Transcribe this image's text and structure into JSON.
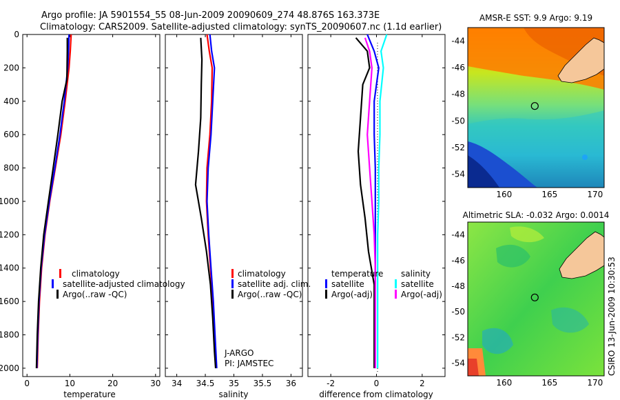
{
  "header": {
    "line1": "Argo profile: JA 5901554_55 08-Jun-2009 20090609_274 48.876S 163.373E",
    "line2": "Climatology: CARS2009. Satellite-adjusted climatology: synTS_20090607.nc (1.1d earlier)"
  },
  "chart_data": [
    {
      "id": "temperature",
      "type": "line",
      "xlabel": "temperature",
      "xlim": [
        -1,
        31
      ],
      "ylim": [
        0,
        2050
      ],
      "xticks": [
        "0",
        "10",
        "20",
        "30"
      ],
      "yticks": [
        "0",
        "200",
        "400",
        "600",
        "800",
        "1000",
        "1200",
        "1400",
        "1600",
        "1800",
        "2000"
      ],
      "legend": [
        "climatology",
        "satellite-adjusted climatology",
        "Argo(..raw -QC)"
      ],
      "series": [
        {
          "name": "climatology",
          "color": "#ff0000",
          "depth": [
            0,
            100,
            200,
            400,
            600,
            800,
            1000,
            1200,
            1400,
            1600,
            1800,
            2000
          ],
          "values": [
            10.3,
            10.1,
            9.8,
            8.9,
            7.9,
            6.6,
            5.3,
            4.2,
            3.4,
            2.9,
            2.6,
            2.4
          ]
        },
        {
          "name": "satellite-adjusted climatology",
          "color": "#0000ff",
          "depth": [
            0,
            100,
            200,
            400,
            600,
            800,
            1000,
            1200,
            1400,
            1600,
            1800,
            2000
          ],
          "values": [
            9.8,
            9.7,
            9.5,
            8.7,
            7.7,
            6.5,
            5.2,
            4.1,
            3.3,
            2.8,
            2.5,
            2.3
          ]
        },
        {
          "name": "Argo(..raw -QC)",
          "color": "#000000",
          "depth": [
            20,
            100,
            270,
            400,
            600,
            800,
            1000,
            1200,
            1400,
            1600,
            1800,
            2000
          ],
          "values": [
            9.4,
            9.4,
            9.3,
            8.2,
            7.2,
            6.1,
            5.0,
            3.9,
            3.2,
            2.7,
            2.4,
            2.2
          ]
        }
      ]
    },
    {
      "id": "salinity",
      "type": "line",
      "xlabel": "salinity",
      "xlim": [
        33.8,
        36.2
      ],
      "ylim": [
        0,
        2050
      ],
      "xticks": [
        "34",
        "34.5",
        "35",
        "35.5",
        "36"
      ],
      "legend": [
        "climatology",
        "satellite adj. clim.",
        "Argo(..raw -QC)"
      ],
      "annotation": [
        "J-ARGO",
        "PI: JAMSTEC"
      ],
      "series": [
        {
          "name": "climatology",
          "color": "#ff0000",
          "depth": [
            0,
            100,
            200,
            400,
            600,
            800,
            1000,
            1200,
            1400,
            1600,
            1800,
            2000
          ],
          "values": [
            34.53,
            34.57,
            34.62,
            34.61,
            34.58,
            34.53,
            34.52,
            34.55,
            34.59,
            34.63,
            34.66,
            34.69
          ]
        },
        {
          "name": "satellite adj. clim.",
          "color": "#0000ff",
          "depth": [
            0,
            100,
            200,
            400,
            600,
            800,
            1000,
            1200,
            1400,
            1600,
            1800,
            2000
          ],
          "values": [
            34.58,
            34.61,
            34.66,
            34.63,
            34.6,
            34.55,
            34.53,
            34.56,
            34.6,
            34.64,
            34.67,
            34.7
          ]
        },
        {
          "name": "Argo(..raw -QC)",
          "color": "#000000",
          "depth": [
            20,
            150,
            300,
            500,
            700,
            900,
            1100,
            1300,
            1500,
            1700,
            1900,
            2000
          ],
          "values": [
            34.42,
            34.44,
            34.43,
            34.42,
            34.38,
            34.33,
            34.43,
            34.52,
            34.59,
            34.63,
            34.66,
            34.68
          ]
        }
      ]
    },
    {
      "id": "difference",
      "type": "line",
      "xlabel": "difference from climatology",
      "xlim": [
        -3,
        3
      ],
      "ylim": [
        0,
        2050
      ],
      "xticks": [
        "-2",
        "0",
        "2"
      ],
      "legend_left": [
        "temperature",
        "satellite",
        "Argo(-adj)"
      ],
      "legend_right": [
        "salinity",
        "satellite",
        "Argo(-adj)"
      ],
      "series": [
        {
          "name": "temperature satellite",
          "color": "#0000ff",
          "depth": [
            0,
            100,
            200,
            400,
            600,
            800,
            1000,
            1200,
            1400,
            1600,
            1800,
            2000
          ],
          "values": [
            -0.4,
            -0.1,
            0.1,
            -0.1,
            -0.1,
            -0.05,
            -0.05,
            -0.05,
            -0.05,
            -0.05,
            -0.05,
            -0.05
          ]
        },
        {
          "name": "temperature Argo(-adj)",
          "color": "#000000",
          "depth": [
            20,
            100,
            200,
            300,
            500,
            700,
            900,
            1100,
            1300,
            1500,
            1800,
            2000
          ],
          "values": [
            -0.9,
            -0.4,
            -0.3,
            -0.6,
            -0.7,
            -0.8,
            -0.7,
            -0.5,
            -0.35,
            -0.1,
            -0.1,
            -0.1
          ]
        },
        {
          "name": "salinity satellite",
          "color": "#00ffff",
          "depth": [
            0,
            100,
            200,
            400,
            600,
            800,
            1000,
            1200,
            1400,
            1600,
            1800,
            2000
          ],
          "values": [
            0.45,
            0.2,
            0.3,
            0.15,
            0.15,
            0.1,
            0.1,
            0.05,
            0.05,
            0.05,
            0.05,
            0.05
          ]
        },
        {
          "name": "salinity Argo(-adj)",
          "color": "#ff00ff",
          "depth": [
            20,
            100,
            200,
            400,
            600,
            800,
            1000,
            1200,
            1400,
            1600,
            1800,
            2000
          ],
          "values": [
            -0.5,
            -0.3,
            -0.2,
            -0.3,
            -0.4,
            -0.3,
            -0.2,
            -0.1,
            -0.05,
            -0.05,
            -0.05,
            -0.05
          ]
        }
      ]
    },
    {
      "id": "sst_map",
      "type": "heatmap",
      "title": "AMSR-E SST: 9.9 Argo: 9.19",
      "xticks": [
        "160",
        "165",
        "170"
      ],
      "yticks": [
        "-44",
        "-46",
        "-48",
        "-50",
        "-52",
        "-54"
      ],
      "xlim": [
        156,
        171
      ],
      "ylim": [
        -55,
        -43
      ],
      "marker": {
        "lon": 163.37,
        "lat": -48.88
      }
    },
    {
      "id": "sla_map",
      "type": "heatmap",
      "title": "Altimetric SLA: -0.032 Argo: 0.0014",
      "xticks": [
        "160",
        "165",
        "170"
      ],
      "yticks": [
        "-44",
        "-46",
        "-48",
        "-50",
        "-52",
        "-54"
      ],
      "xlim": [
        156,
        171
      ],
      "ylim": [
        -55,
        -43
      ],
      "marker": {
        "lon": 163.37,
        "lat": -48.88
      }
    }
  ],
  "footer": {
    "credit": "CSIRO 13-Jun-2009 10:30:53"
  }
}
